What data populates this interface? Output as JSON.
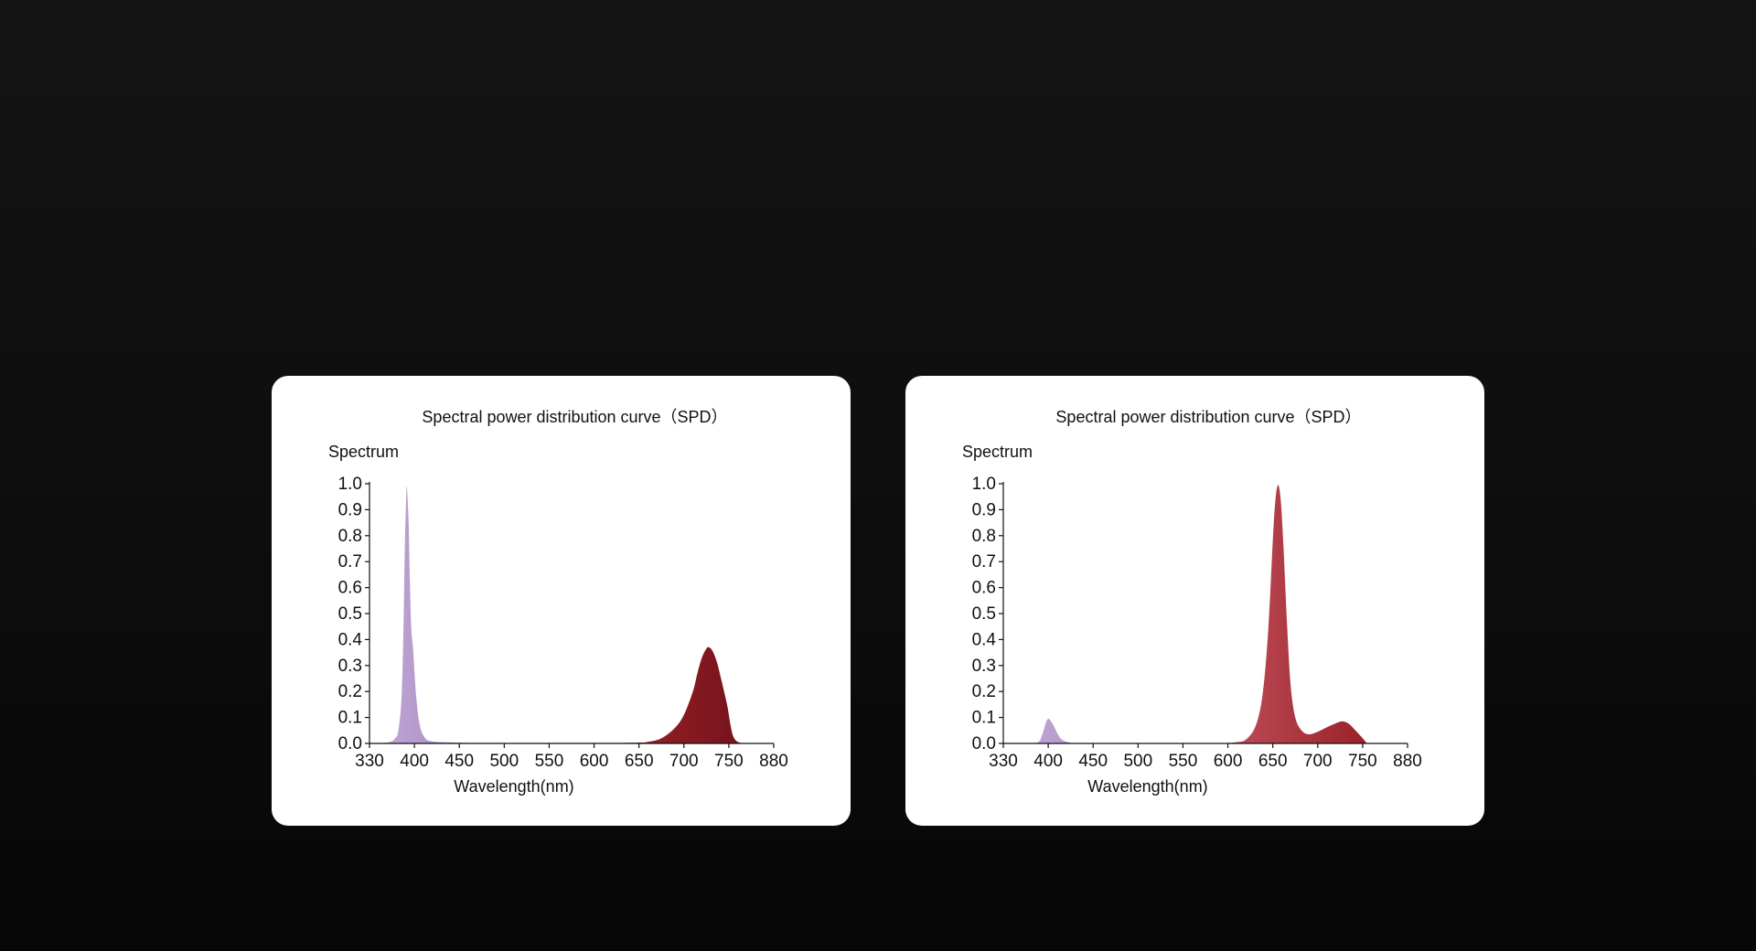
{
  "chart_data": [
    {
      "type": "area",
      "title": "Spectral power distribution curve（SPD）",
      "ylabel": "Spectrum",
      "xlabel": "Wavelength(nm)",
      "ylim": [
        0,
        1.0
      ],
      "y_ticks": [
        "0.0",
        "0.1",
        "0.2",
        "0.3",
        "0.4",
        "0.5",
        "0.6",
        "0.7",
        "0.8",
        "0.9",
        "1.0"
      ],
      "x_ticks": [
        "330",
        "400",
        "450",
        "500",
        "550",
        "600",
        "650",
        "700",
        "750",
        "880"
      ],
      "grid": false,
      "series": [
        {
          "color_start": "#c4a8d6",
          "color_end": "#4b3a86",
          "points": [
            [
              330,
              0
            ],
            [
              360,
              0.005
            ],
            [
              370,
              0.02
            ],
            [
              375,
              0.05
            ],
            [
              380,
              0.18
            ],
            [
              383,
              0.45
            ],
            [
              385,
              0.75
            ],
            [
              387,
              0.93
            ],
            [
              388,
              0.99
            ],
            [
              389,
              0.96
            ],
            [
              391,
              0.85
            ],
            [
              393,
              0.62
            ],
            [
              395,
              0.45
            ],
            [
              398,
              0.36
            ],
            [
              402,
              0.18
            ],
            [
              406,
              0.07
            ],
            [
              412,
              0.02
            ],
            [
              420,
              0.008
            ],
            [
              440,
              0.004
            ],
            [
              480,
              0.002
            ],
            [
              560,
              0.002
            ],
            [
              640,
              0.002
            ],
            [
              880,
              0
            ]
          ]
        },
        {
          "color_start": "#a3242a",
          "color_end": "#6c0f18",
          "points": [
            [
              600,
              0
            ],
            [
              650,
              0.003
            ],
            [
              660,
              0.006
            ],
            [
              675,
              0.02
            ],
            [
              690,
              0.06
            ],
            [
              700,
              0.11
            ],
            [
              710,
              0.2
            ],
            [
              715,
              0.27
            ],
            [
              720,
              0.33
            ],
            [
              725,
              0.365
            ],
            [
              728,
              0.37
            ],
            [
              732,
              0.355
            ],
            [
              737,
              0.31
            ],
            [
              742,
              0.24
            ],
            [
              748,
              0.15
            ],
            [
              755,
              0.07
            ],
            [
              762,
              0.03
            ],
            [
              770,
              0.012
            ],
            [
              780,
              0.004
            ],
            [
              800,
              0
            ],
            [
              880,
              0
            ]
          ]
        }
      ]
    },
    {
      "type": "area",
      "title": "Spectral power distribution curve（SPD）",
      "ylabel": "Spectrum",
      "xlabel": "Wavelength(nm)",
      "ylim": [
        0,
        1.0
      ],
      "y_ticks": [
        "0.0",
        "0.1",
        "0.2",
        "0.3",
        "0.4",
        "0.5",
        "0.6",
        "0.7",
        "0.8",
        "0.9",
        "1.0"
      ],
      "x_ticks": [
        "330",
        "400",
        "450",
        "500",
        "550",
        "600",
        "650",
        "700",
        "750",
        "880"
      ],
      "grid": false,
      "series": [
        {
          "color_start": "#c4a8d6",
          "color_end": "#6f5aa0",
          "points": [
            [
              330,
              0
            ],
            [
              380,
              0.002
            ],
            [
              390,
              0.03
            ],
            [
              395,
              0.07
            ],
            [
              400,
              0.095
            ],
            [
              405,
              0.075
            ],
            [
              410,
              0.04
            ],
            [
              415,
              0.015
            ],
            [
              425,
              0.003
            ],
            [
              440,
              0
            ],
            [
              880,
              0
            ]
          ]
        },
        {
          "color_start": "#c0505a",
          "color_end": "#8f141d",
          "points": [
            [
              590,
              0
            ],
            [
              610,
              0.005
            ],
            [
              620,
              0.015
            ],
            [
              630,
              0.06
            ],
            [
              637,
              0.15
            ],
            [
              642,
              0.3
            ],
            [
              646,
              0.5
            ],
            [
              650,
              0.78
            ],
            [
              653,
              0.94
            ],
            [
              656,
              0.995
            ],
            [
              659,
              0.93
            ],
            [
              662,
              0.75
            ],
            [
              666,
              0.45
            ],
            [
              670,
              0.22
            ],
            [
              675,
              0.1
            ],
            [
              682,
              0.05
            ],
            [
              690,
              0.035
            ],
            [
              700,
              0.045
            ],
            [
              712,
              0.065
            ],
            [
              722,
              0.08
            ],
            [
              728,
              0.085
            ],
            [
              735,
              0.075
            ],
            [
              742,
              0.05
            ],
            [
              750,
              0.02
            ],
            [
              760,
              0.005
            ],
            [
              770,
              0
            ],
            [
              880,
              0
            ]
          ]
        }
      ]
    }
  ]
}
